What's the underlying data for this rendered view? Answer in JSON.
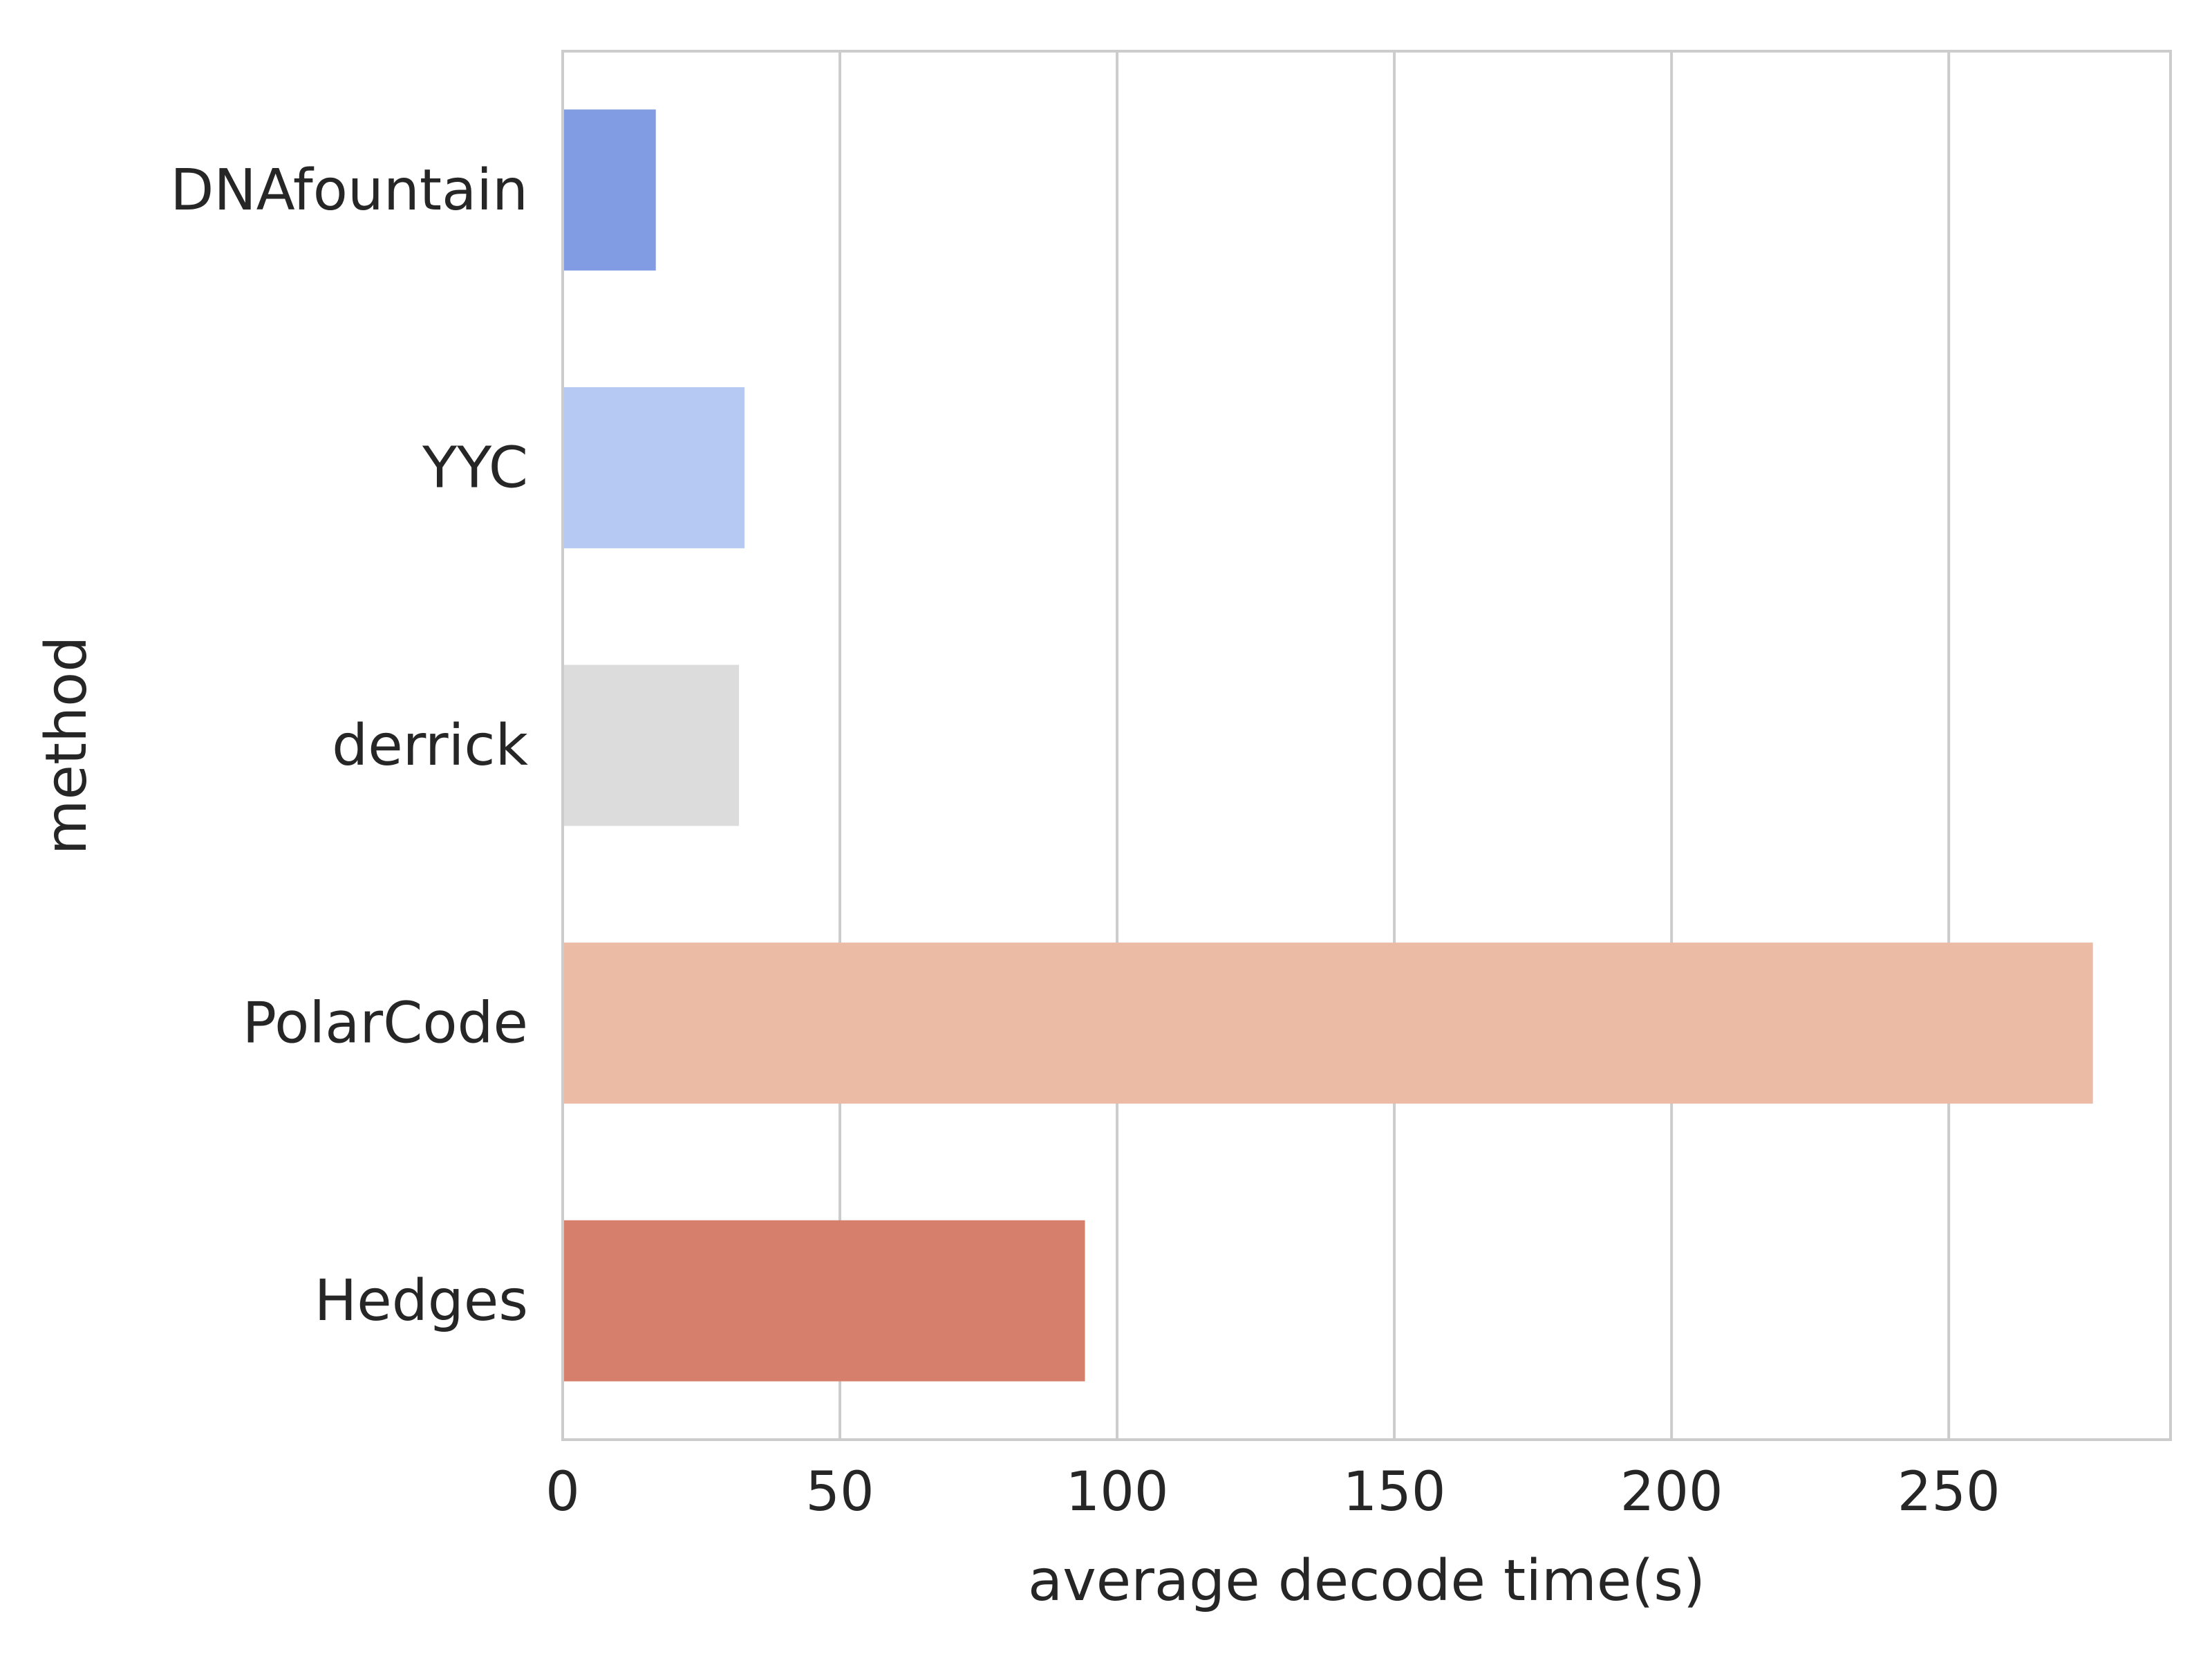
{
  "chart_data": {
    "type": "bar",
    "orientation": "horizontal",
    "categories": [
      "DNAfountain",
      "YYC",
      "derrick",
      "PolarCode",
      "Hedges"
    ],
    "values": [
      16.8,
      32.8,
      31.8,
      276.0,
      94.2
    ],
    "colors": [
      "#829cE3",
      "#B5C9F2",
      "#DCDCDC",
      "#EBBBA6",
      "#D67F6D"
    ],
    "xlabel": "average decode time(s)",
    "ylabel": "method",
    "xlim": [
      0,
      290
    ],
    "xticks": [
      0,
      50,
      100,
      150,
      200,
      250
    ],
    "xtick_labels": [
      "0",
      "50",
      "100",
      "150",
      "200",
      "250"
    ],
    "grid": "vertical",
    "style": {
      "grid_color": "#CCCCCC",
      "spine_color": "#CCCCCC",
      "text_color": "#262626",
      "background": "#FFFFFF"
    }
  }
}
